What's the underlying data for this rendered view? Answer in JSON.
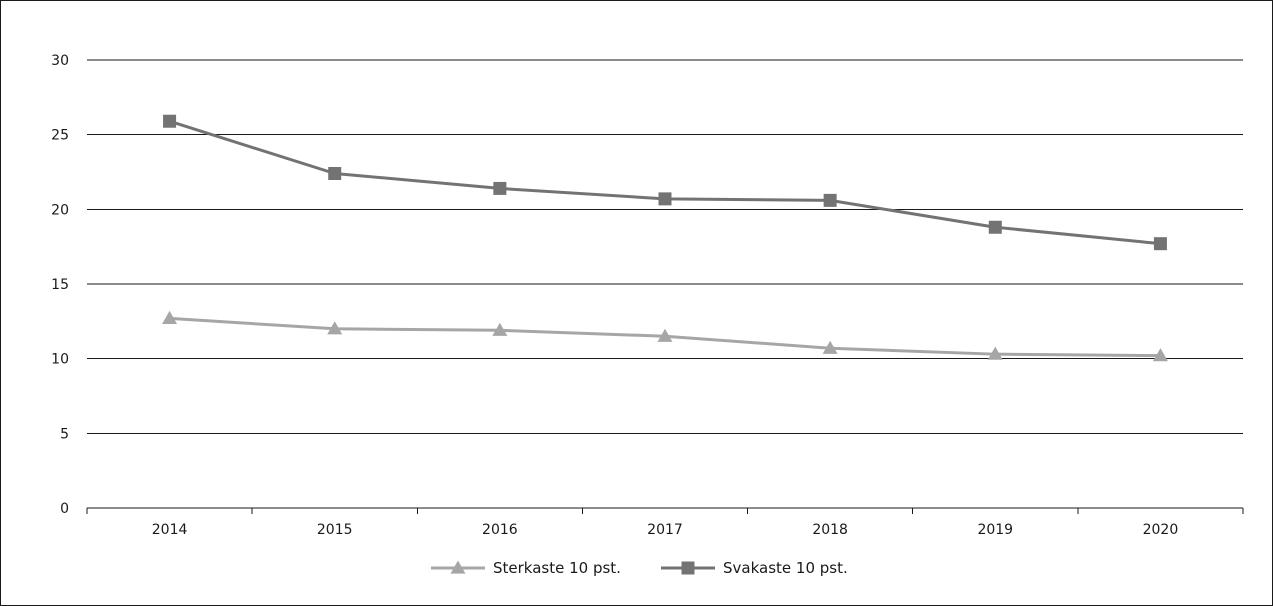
{
  "chart_data": {
    "type": "line",
    "title": "",
    "xlabel": "",
    "ylabel": "",
    "x": [
      "2014",
      "2015",
      "2016",
      "2017",
      "2018",
      "2019",
      "2020"
    ],
    "ylim": [
      0,
      30
    ],
    "yticks": [
      0,
      5,
      10,
      15,
      20,
      25,
      30
    ],
    "grid": "horizontal",
    "legend_position": "bottom",
    "series": [
      {
        "name": "Sterkaste 10 pst.",
        "values": [
          12.7,
          12.0,
          11.9,
          11.5,
          10.7,
          10.3,
          10.2
        ],
        "color": "#a6a6a6",
        "marker": "triangle"
      },
      {
        "name": "Svakaste 10 pst.",
        "values": [
          25.9,
          22.4,
          21.4,
          20.7,
          20.6,
          18.8,
          17.7
        ],
        "color": "#737373",
        "marker": "square"
      }
    ],
    "colors": {
      "axis": "#1a1a1a",
      "grid": "#1a1a1a",
      "text": "#1a1a1a"
    }
  }
}
